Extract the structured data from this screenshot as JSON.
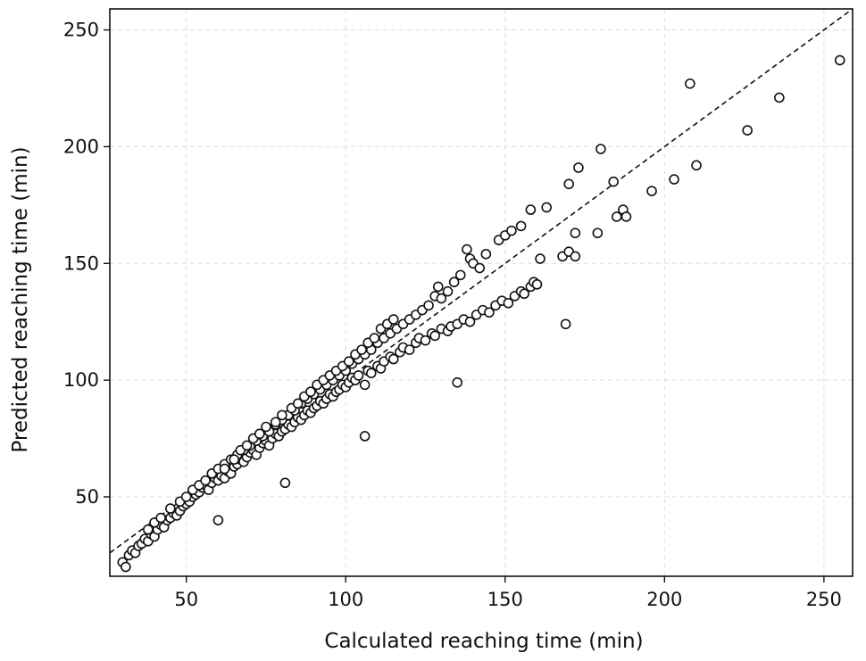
{
  "chart_data": {
    "type": "scatter",
    "xlabel": "Calculated reaching time (min)",
    "ylabel": "Predicted reaching time (min)",
    "xlim": [
      26,
      259
    ],
    "ylim": [
      16,
      259
    ],
    "xticks": [
      50,
      100,
      150,
      200,
      250
    ],
    "yticks": [
      50,
      100,
      150,
      200,
      250
    ],
    "grid": true,
    "reference_line": {
      "type": "identity",
      "style": "dashed",
      "color": "#111111"
    },
    "series": [
      {
        "points": [
          [
            30,
            22
          ],
          [
            31,
            20
          ],
          [
            32,
            25
          ],
          [
            33,
            27
          ],
          [
            34,
            26
          ],
          [
            35,
            29
          ],
          [
            36,
            30
          ],
          [
            37,
            32
          ],
          [
            38,
            31
          ],
          [
            39,
            34
          ],
          [
            40,
            33
          ],
          [
            41,
            36
          ],
          [
            42,
            38
          ],
          [
            43,
            37
          ],
          [
            44,
            40
          ],
          [
            45,
            41
          ],
          [
            46,
            43
          ],
          [
            47,
            42
          ],
          [
            48,
            44
          ],
          [
            49,
            46
          ],
          [
            50,
            47
          ],
          [
            51,
            48
          ],
          [
            52,
            50
          ],
          [
            53,
            51
          ],
          [
            54,
            52
          ],
          [
            55,
            54
          ],
          [
            56,
            55
          ],
          [
            57,
            53
          ],
          [
            58,
            56
          ],
          [
            59,
            58
          ],
          [
            60,
            40
          ],
          [
            60,
            57
          ],
          [
            61,
            59
          ],
          [
            62,
            58
          ],
          [
            63,
            61
          ],
          [
            64,
            60
          ],
          [
            65,
            63
          ],
          [
            66,
            64
          ],
          [
            67,
            66
          ],
          [
            68,
            65
          ],
          [
            69,
            67
          ],
          [
            70,
            69
          ],
          [
            71,
            70
          ],
          [
            72,
            68
          ],
          [
            73,
            71
          ],
          [
            74,
            73
          ],
          [
            75,
            74
          ],
          [
            76,
            72
          ],
          [
            77,
            75
          ],
          [
            78,
            77
          ],
          [
            79,
            76
          ],
          [
            80,
            78
          ],
          [
            81,
            56
          ],
          [
            81,
            79
          ],
          [
            82,
            81
          ],
          [
            83,
            80
          ],
          [
            84,
            82
          ],
          [
            85,
            84
          ],
          [
            86,
            83
          ],
          [
            87,
            85
          ],
          [
            88,
            87
          ],
          [
            89,
            86
          ],
          [
            90,
            88
          ],
          [
            91,
            89
          ],
          [
            92,
            91
          ],
          [
            93,
            90
          ],
          [
            94,
            92
          ],
          [
            95,
            94
          ],
          [
            96,
            93
          ],
          [
            97,
            95
          ],
          [
            98,
            96
          ],
          [
            99,
            98
          ],
          [
            100,
            97
          ],
          [
            101,
            99
          ],
          [
            102,
            101
          ],
          [
            103,
            100
          ],
          [
            104,
            102
          ],
          [
            106,
            76
          ],
          [
            106,
            98
          ],
          [
            107,
            104
          ],
          [
            108,
            103
          ],
          [
            110,
            106
          ],
          [
            111,
            105
          ],
          [
            112,
            108
          ],
          [
            114,
            110
          ],
          [
            115,
            109
          ],
          [
            117,
            112
          ],
          [
            118,
            114
          ],
          [
            120,
            113
          ],
          [
            122,
            116
          ],
          [
            123,
            118
          ],
          [
            125,
            117
          ],
          [
            127,
            120
          ],
          [
            128,
            119
          ],
          [
            130,
            122
          ],
          [
            132,
            121
          ],
          [
            133,
            123
          ],
          [
            135,
            99
          ],
          [
            135,
            124
          ],
          [
            137,
            126
          ],
          [
            139,
            125
          ],
          [
            141,
            128
          ],
          [
            143,
            130
          ],
          [
            145,
            129
          ],
          [
            147,
            132
          ],
          [
            149,
            134
          ],
          [
            151,
            133
          ],
          [
            153,
            136
          ],
          [
            155,
            138
          ],
          [
            156,
            137
          ],
          [
            158,
            140
          ],
          [
            159,
            142
          ],
          [
            160,
            141
          ],
          [
            38,
            36
          ],
          [
            40,
            39
          ],
          [
            42,
            41
          ],
          [
            45,
            45
          ],
          [
            48,
            48
          ],
          [
            50,
            50
          ],
          [
            52,
            53
          ],
          [
            54,
            55
          ],
          [
            56,
            57
          ],
          [
            58,
            60
          ],
          [
            60,
            62
          ],
          [
            62,
            64
          ],
          [
            64,
            66
          ],
          [
            66,
            68
          ],
          [
            68,
            70
          ],
          [
            70,
            72
          ],
          [
            72,
            74
          ],
          [
            74,
            76
          ],
          [
            76,
            78
          ],
          [
            78,
            81
          ],
          [
            80,
            83
          ],
          [
            82,
            85
          ],
          [
            84,
            87
          ],
          [
            86,
            90
          ],
          [
            88,
            92
          ],
          [
            90,
            94
          ],
          [
            92,
            96
          ],
          [
            94,
            98
          ],
          [
            96,
            100
          ],
          [
            98,
            102
          ],
          [
            100,
            104
          ],
          [
            102,
            107
          ],
          [
            104,
            109
          ],
          [
            106,
            111
          ],
          [
            108,
            113
          ],
          [
            110,
            116
          ],
          [
            112,
            118
          ],
          [
            114,
            120
          ],
          [
            116,
            122
          ],
          [
            118,
            124
          ],
          [
            120,
            126
          ],
          [
            122,
            128
          ],
          [
            124,
            130
          ],
          [
            126,
            132
          ],
          [
            128,
            136
          ],
          [
            129,
            140
          ],
          [
            130,
            135
          ],
          [
            132,
            138
          ],
          [
            134,
            142
          ],
          [
            136,
            145
          ],
          [
            138,
            156
          ],
          [
            139,
            152
          ],
          [
            140,
            150
          ],
          [
            142,
            148
          ],
          [
            144,
            154
          ],
          [
            148,
            160
          ],
          [
            150,
            162
          ],
          [
            152,
            164
          ],
          [
            155,
            166
          ],
          [
            158,
            173
          ],
          [
            161,
            152
          ],
          [
            163,
            174
          ],
          [
            62,
            62
          ],
          [
            65,
            66
          ],
          [
            67,
            70
          ],
          [
            69,
            72
          ],
          [
            71,
            75
          ],
          [
            73,
            77
          ],
          [
            75,
            80
          ],
          [
            78,
            82
          ],
          [
            80,
            85
          ],
          [
            83,
            88
          ],
          [
            85,
            90
          ],
          [
            87,
            93
          ],
          [
            89,
            95
          ],
          [
            91,
            98
          ],
          [
            93,
            100
          ],
          [
            95,
            102
          ],
          [
            97,
            104
          ],
          [
            99,
            106
          ],
          [
            101,
            108
          ],
          [
            103,
            111
          ],
          [
            105,
            113
          ],
          [
            107,
            116
          ],
          [
            109,
            118
          ],
          [
            111,
            122
          ],
          [
            113,
            124
          ],
          [
            115,
            126
          ],
          [
            168,
            153
          ],
          [
            169,
            124
          ],
          [
            170,
            155
          ],
          [
            170,
            184
          ],
          [
            172,
            163
          ],
          [
            173,
            191
          ],
          [
            172,
            153
          ],
          [
            179,
            163
          ],
          [
            180,
            199
          ],
          [
            184,
            185
          ],
          [
            185,
            170
          ],
          [
            187,
            173
          ],
          [
            188,
            170
          ],
          [
            196,
            181
          ],
          [
            203,
            186
          ],
          [
            208,
            227
          ],
          [
            210,
            192
          ],
          [
            226,
            207
          ],
          [
            236,
            221
          ],
          [
            255,
            237
          ]
        ]
      }
    ]
  }
}
